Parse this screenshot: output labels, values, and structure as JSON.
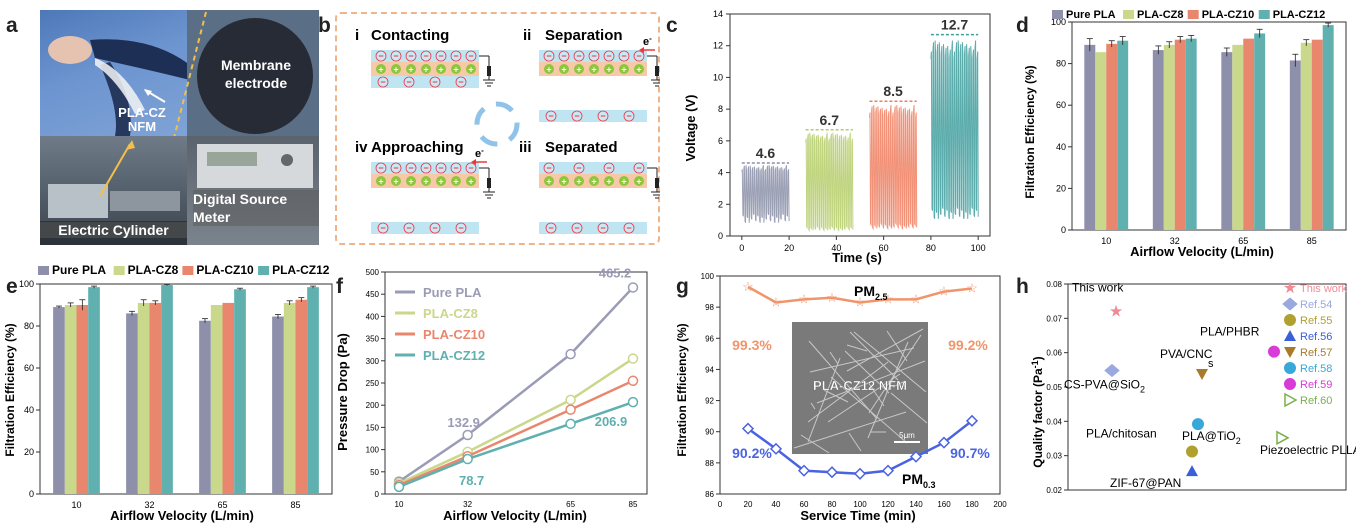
{
  "panel_a": {
    "letter": "a",
    "label_nfm_1": "PLA-CZ",
    "label_nfm_2": "NFM",
    "label_membrane_1": "Membrane",
    "label_membrane_2": "electrode",
    "label_source_1": "Digital Source",
    "label_source_2": "Meter",
    "label_cylinder": "Electric Cylinder"
  },
  "panel_b": {
    "letter": "b",
    "stages": [
      {
        "num": "i",
        "name": "Contacting"
      },
      {
        "num": "ii",
        "name": "Separation"
      },
      {
        "num": "iv",
        "name": "Approaching"
      },
      {
        "num": "iii",
        "name": "Separated"
      }
    ],
    "electron": "e",
    "electron_sup": "-",
    "colors": {
      "layer_blue": "#bfe4f2",
      "layer_orange": "#f8c9a6",
      "plus": "#8dc63f",
      "minus": "#ffffff",
      "arrow": "#e83b3b"
    }
  },
  "panel_c": {
    "letter": "c",
    "chart_data": {
      "type": "line",
      "xlabel": "Time (s)",
      "ylabel": "Voltage (V)",
      "xlim": [
        -5,
        105
      ],
      "ylim": [
        0,
        14
      ],
      "xticks": [
        0,
        20,
        40,
        60,
        80,
        100
      ],
      "yticks": [
        0,
        2,
        4,
        6,
        8,
        10,
        12,
        14
      ],
      "series": [
        {
          "x_range": [
            0,
            20
          ],
          "peak": 4.6,
          "low": 1.4,
          "color": "#8b8fa8",
          "label": "4.6"
        },
        {
          "x_range": [
            27,
            47
          ],
          "peak": 6.7,
          "low": 0.6,
          "color": "#b5cc6a",
          "label": "6.7"
        },
        {
          "x_range": [
            54,
            74
          ],
          "peak": 8.5,
          "low": 0.8,
          "color": "#ef7f60",
          "label": "8.5"
        },
        {
          "x_range": [
            80,
            100
          ],
          "peak": 12.7,
          "low": 1.8,
          "color": "#3f9e9e",
          "label": "12.7"
        }
      ]
    }
  },
  "panel_d": {
    "letter": "d",
    "chart_data": {
      "type": "bar",
      "xlabel": "Airflow Velocity (L/min)",
      "ylabel": "Filtration Efficiency (%)",
      "categories": [
        "10",
        "32",
        "65",
        "85"
      ],
      "ylim": [
        0,
        100
      ],
      "yticks": [
        0,
        20,
        40,
        60,
        80,
        100
      ],
      "series": [
        {
          "name": "Pure PLA",
          "color": "#8d8fab",
          "values": [
            89,
            86.5,
            85.5,
            81.5
          ],
          "err": [
            3,
            2,
            2,
            3
          ]
        },
        {
          "name": "PLA-CZ8",
          "color": "#c9d88b",
          "values": [
            85.5,
            89,
            89,
            90
          ],
          "err": [
            0,
            1.5,
            0,
            1.5
          ]
        },
        {
          "name": "PLA-CZ10",
          "color": "#e8876e",
          "values": [
            89.5,
            91.5,
            92,
            91.5
          ],
          "err": [
            1.5,
            1.5,
            0,
            0
          ]
        },
        {
          "name": "PLA-CZ12",
          "color": "#5fb0ae",
          "values": [
            91,
            92,
            94.5,
            98.5
          ],
          "err": [
            2,
            1.5,
            2,
            1
          ]
        }
      ]
    }
  },
  "panel_e": {
    "letter": "e",
    "chart_data": {
      "type": "bar",
      "xlabel": "Airflow Velocity (L/min)",
      "ylabel": "Filtration Efficiency (%)",
      "categories": [
        "10",
        "32",
        "65",
        "85"
      ],
      "ylim": [
        0,
        100
      ],
      "yticks": [
        0,
        20,
        40,
        60,
        80,
        100
      ],
      "series": [
        {
          "name": "Pure PLA",
          "color": "#8d8fab",
          "values": [
            89,
            86,
            82.5,
            84.5
          ],
          "err": [
            0.5,
            1,
            1,
            1
          ]
        },
        {
          "name": "PLA-CZ8",
          "color": "#c9d88b",
          "values": [
            90,
            91,
            90,
            91
          ],
          "err": [
            1,
            1.5,
            0,
            1
          ]
        },
        {
          "name": "PLA-CZ10",
          "color": "#e8876e",
          "values": [
            90,
            91,
            91,
            92.5
          ],
          "err": [
            2.5,
            1,
            0,
            1
          ]
        },
        {
          "name": "PLA-CZ12",
          "color": "#5fb0ae",
          "values": [
            98.5,
            99.5,
            97.5,
            98.5
          ],
          "err": [
            0.5,
            0.3,
            0.5,
            0.5
          ]
        }
      ]
    }
  },
  "panel_f": {
    "letter": "f",
    "chart_data": {
      "type": "line",
      "xlabel": "Airflow Velocity (L/min)",
      "ylabel": "Pressure Drop (Pa)",
      "x": [
        10,
        32,
        65,
        85
      ],
      "xticks": [
        10,
        32,
        65,
        85
      ],
      "ylim": [
        0,
        500
      ],
      "yticks": [
        0,
        50,
        100,
        150,
        200,
        250,
        300,
        350,
        400,
        450,
        500
      ],
      "series": [
        {
          "name": "Pure PLA",
          "color": "#9a9cb6",
          "values": [
            28,
            132.9,
            315,
            465.2
          ]
        },
        {
          "name": "PLA-CZ8",
          "color": "#c9d88b",
          "values": [
            24,
            95,
            212,
            305
          ]
        },
        {
          "name": "PLA-CZ10",
          "color": "#e8876e",
          "values": [
            20,
            85,
            190,
            255
          ]
        },
        {
          "name": "PLA-CZ12",
          "color": "#5fb0ae",
          "values": [
            16,
            78.7,
            158,
            206.9
          ]
        }
      ],
      "annotations": [
        {
          "text": "132.9",
          "color": "#9a9cb6"
        },
        {
          "text": "465.2",
          "color": "#9a9cb6"
        },
        {
          "text": "78.7",
          "color": "#5fb0ae"
        },
        {
          "text": "206.9",
          "color": "#5fb0ae"
        }
      ]
    }
  },
  "panel_g": {
    "letter": "g",
    "chart_data": {
      "type": "line",
      "xlabel": "Service Time (min)",
      "ylabel": "Filtration Efficiency (%)",
      "x": [
        20,
        40,
        60,
        80,
        100,
        120,
        140,
        160,
        180
      ],
      "xticks": [
        0,
        20,
        40,
        60,
        80,
        100,
        120,
        140,
        160,
        180,
        200
      ],
      "ylim": [
        86,
        100
      ],
      "yticks": [
        86,
        88,
        90,
        92,
        94,
        96,
        98,
        100
      ],
      "series": [
        {
          "name": "PM2.5",
          "color": "#f0956b",
          "values": [
            99.3,
            98.3,
            98.5,
            98.6,
            98.3,
            98.5,
            98.5,
            99.0,
            99.2
          ]
        },
        {
          "name": "PM0.3",
          "color": "#4a63e0",
          "values": [
            90.2,
            88.9,
            87.5,
            87.4,
            87.3,
            87.5,
            88.4,
            89.3,
            90.7
          ]
        }
      ],
      "labels": {
        "pm25_main": "PM",
        "pm25_sub": "2.5",
        "pm03_main": "PM",
        "pm03_sub": "0.3",
        "pm25_left": "99.3%",
        "pm25_right": "99.2%",
        "pm03_left": "90.2%",
        "pm03_right": "90.7%"
      },
      "sem_label": "PLA-CZ12 NFM",
      "scale_bar": "5μm"
    }
  },
  "panel_h": {
    "letter": "h",
    "chart_data": {
      "type": "scatter",
      "ylabel": "Quality factor (Pa",
      "ylabel_sup": "-1",
      "ylabel_close": ")",
      "ylim": [
        0.02,
        0.08
      ],
      "yticks": [
        0.02,
        0.03,
        0.04,
        0.05,
        0.06,
        0.07,
        0.08
      ],
      "points": [
        {
          "legend": "This work",
          "label": "This work",
          "value": 0.072,
          "color": "#f08b96",
          "marker": "star"
        },
        {
          "legend": "Ref.54",
          "label": "CS-PVA@SiO",
          "sub": "2",
          "value": 0.0548,
          "color": "#9aa8e0",
          "marker": "diamond"
        },
        {
          "legend": "Ref.55",
          "label": "PLA/chitosan",
          "value": 0.0312,
          "color": "#b0a030",
          "marker": "half"
        },
        {
          "legend": "Ref.56",
          "label": "ZIF-67@PAN",
          "value": 0.0255,
          "color": "#3b5fd9",
          "marker": "tri"
        },
        {
          "legend": "Ref.57",
          "label": "PVA/CNC",
          "value": 0.0538,
          "color": "#a87a2a",
          "marker": "tridown"
        },
        {
          "legend": "Ref.58",
          "label": "PLA@TiO",
          "sub": "2",
          "value": 0.0392,
          "color": "#38a8d8",
          "marker": "half"
        },
        {
          "legend": "Ref.59",
          "label": "PLA/PHBR",
          "value": 0.0603,
          "color": "#d83bd8",
          "marker": "half"
        },
        {
          "legend": "Ref.60",
          "label": "Piezoelectric PLLA",
          "value": 0.0352,
          "color": "#7ab04a",
          "marker": "triright"
        }
      ],
      "stray": "s"
    }
  }
}
